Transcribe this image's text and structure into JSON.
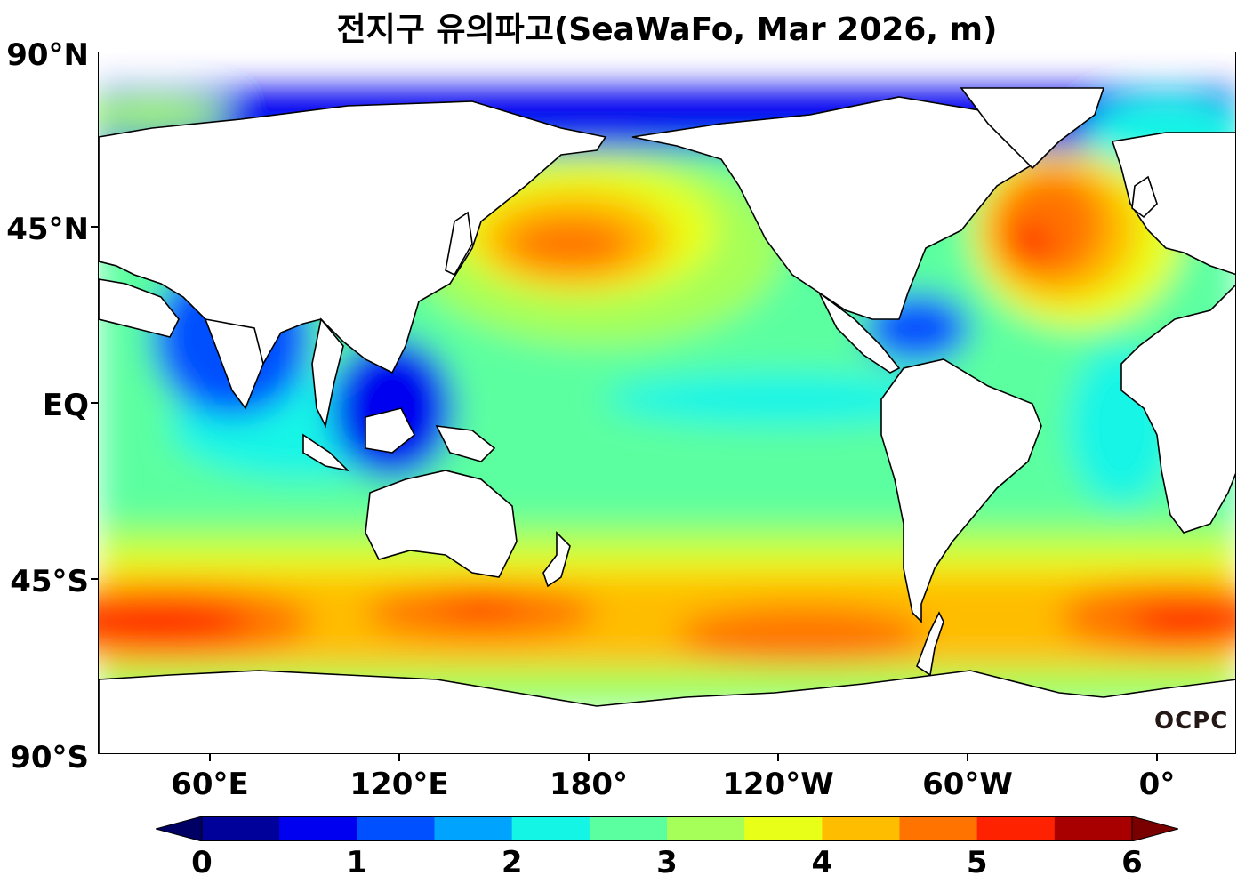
{
  "title": "전지구 유의파고(SeaWaFo, Mar 2026, m)",
  "logo": "OCPC",
  "lat_labels": [
    "90°N",
    "45°N",
    "EQ",
    "45°S",
    "90°S"
  ],
  "lon_labels": [
    "60°E",
    "120°E",
    "180°",
    "120°W",
    "60°W",
    "0°"
  ],
  "colorbar": {
    "ticks": [
      "0",
      "1",
      "2",
      "3",
      "4",
      "5",
      "6"
    ],
    "levels": [
      0,
      0.5,
      1,
      1.5,
      2,
      2.5,
      3,
      3.5,
      4,
      4.5,
      5,
      5.5,
      6
    ],
    "colors": [
      "#00009a",
      "#0000f0",
      "#0050ff",
      "#00a4ff",
      "#14f5e6",
      "#5cffa0",
      "#a6ff58",
      "#e8ff18",
      "#ffbd00",
      "#ff7300",
      "#ff2200",
      "#a80000"
    ],
    "under_color": "#000064",
    "over_color": "#7a0000",
    "extend": "both"
  },
  "map": {
    "projection": "PlateCarree",
    "central_longitude": "(not shown)",
    "variable": "significant wave height",
    "unit": "m",
    "land_color": "#ffffff",
    "coastline_color": "#000000"
  }
}
